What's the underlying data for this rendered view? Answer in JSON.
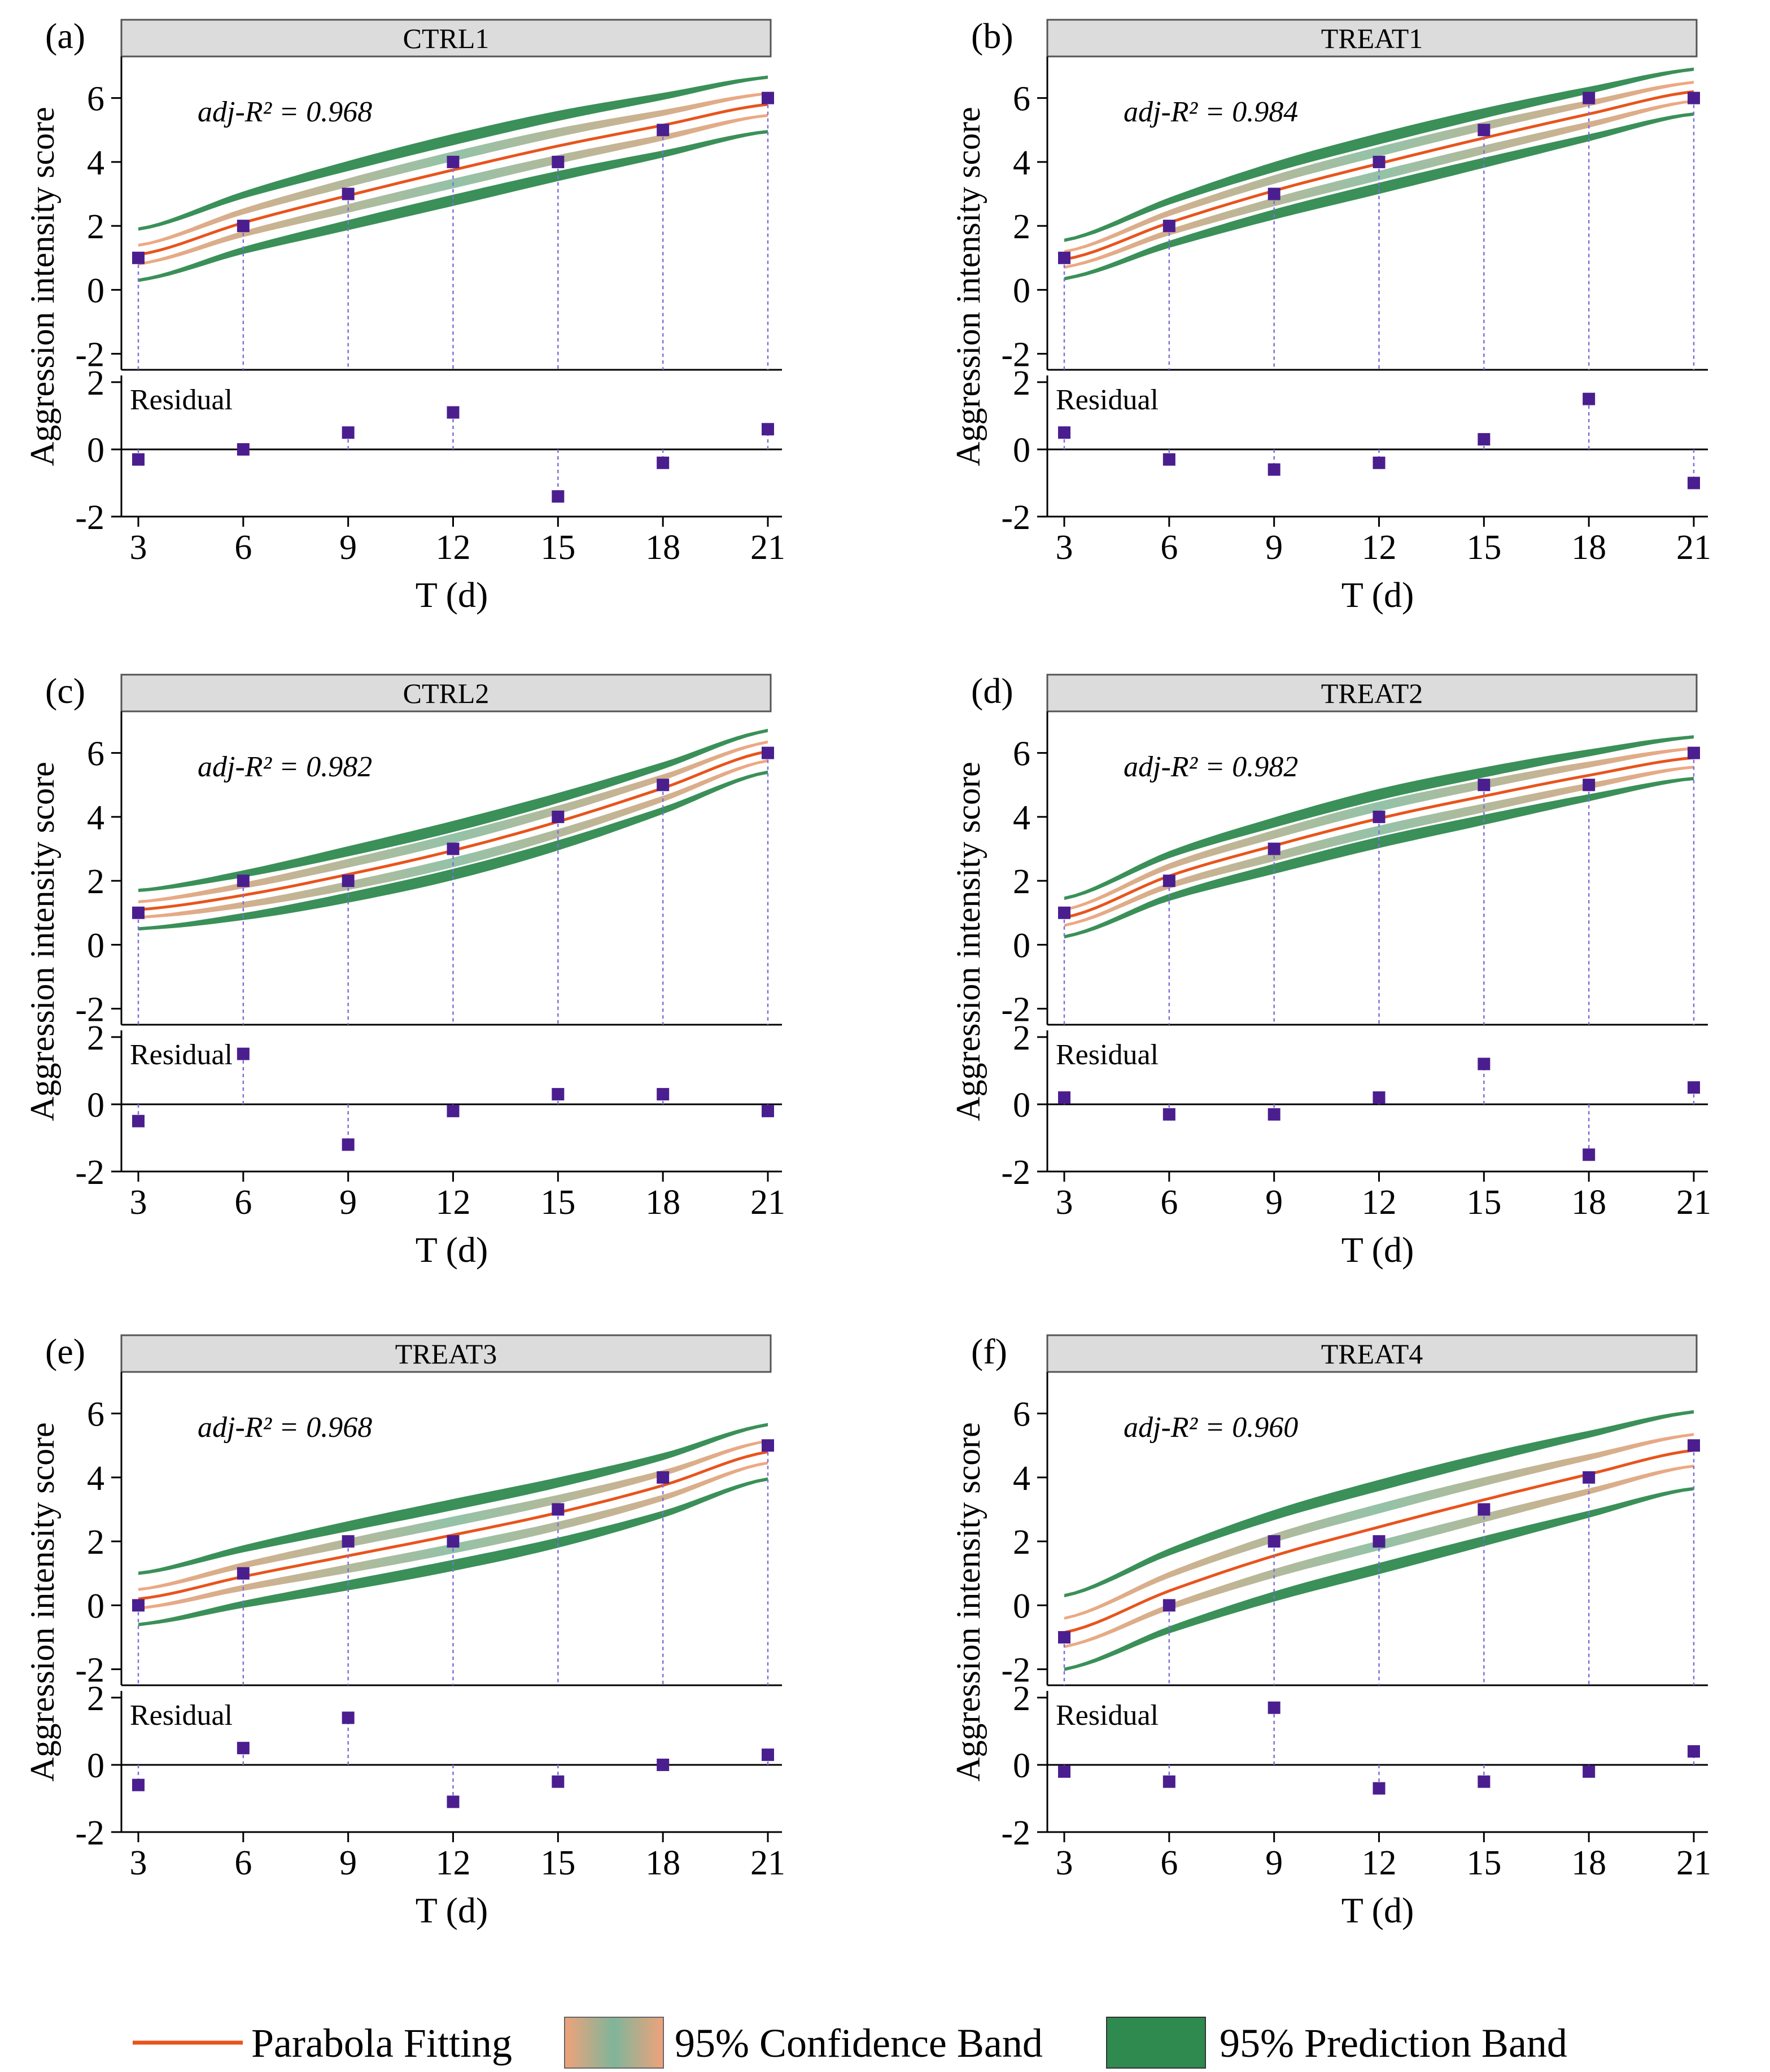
{
  "colors": {
    "fit": "#e8541c",
    "conf": "#f0a27a",
    "conf_inner": "#7fb59a",
    "pred": "#2f8a4f",
    "pred_light": "#b9dcc4",
    "point": "#4b1e8f",
    "drop": "#7e6fd8",
    "strip": "#dcdcdc"
  },
  "legend": {
    "fit_label": "Parabola Fitting",
    "conf_label": "95% Confidence Band",
    "pred_label": "95% Prediction Band"
  },
  "chart_data": [
    {
      "type": "scatter",
      "panel": "(a)",
      "title": "CTRL1",
      "xlabel": "T (d)",
      "ylabel": "Aggression intensity score",
      "annotation": "adj-R² = 0.968",
      "r2": "0.968",
      "x": [
        3,
        6,
        9,
        12,
        15,
        18,
        21
      ],
      "y": [
        1,
        2,
        3,
        4,
        4,
        5,
        6
      ],
      "fit": [
        1.1,
        2.1,
        2.95,
        3.75,
        4.5,
        5.15,
        5.8
      ],
      "residuals": [
        -0.3,
        0.0,
        0.5,
        1.1,
        -1.4,
        -0.4,
        0.6
      ],
      "conf_halfwidth": [
        0.55,
        0.6
      ],
      "pred_halfwidth": [
        1.1,
        1.15
      ],
      "xticks": [
        "3",
        "6",
        "9",
        "12",
        "15",
        "18",
        "21"
      ],
      "yticks": [
        "-2",
        "0",
        "2",
        "4",
        "6"
      ],
      "ylim": [
        -2.5,
        7.3
      ],
      "residual_label": "Residual",
      "residual_yticks": [
        "-2",
        "0",
        "2"
      ],
      "residual_ylim": [
        -2,
        2.2
      ]
    },
    {
      "type": "scatter",
      "panel": "(b)",
      "title": "TREAT1",
      "xlabel": "T (d)",
      "ylabel": "Aggression intensity score",
      "annotation": "adj-R² = 0.984",
      "r2": "0.984",
      "x": [
        3,
        6,
        9,
        12,
        15,
        18,
        21
      ],
      "y": [
        1,
        2,
        3,
        4,
        5,
        6,
        6
      ],
      "fit": [
        0.95,
        2.1,
        3.1,
        3.95,
        4.75,
        5.5,
        6.2
      ],
      "residuals": [
        0.5,
        -0.3,
        -0.6,
        -0.4,
        0.3,
        1.5,
        -1.0
      ],
      "conf_halfwidth": [
        0.5,
        0.55
      ],
      "pred_halfwidth": [
        0.9,
        1.0
      ],
      "xticks": [
        "3",
        "6",
        "9",
        "12",
        "15",
        "18",
        "21"
      ],
      "yticks": [
        "-2",
        "0",
        "2",
        "4",
        "6"
      ],
      "ylim": [
        -2.5,
        7.3
      ],
      "residual_label": "Residual",
      "residual_yticks": [
        "-2",
        "0",
        "2"
      ],
      "residual_ylim": [
        -2,
        2.2
      ]
    },
    {
      "type": "scatter",
      "panel": "(c)",
      "title": "CTRL2",
      "xlabel": "T (d)",
      "ylabel": "Aggression intensity score",
      "annotation": "adj-R² = 0.982",
      "r2": "0.982",
      "x": [
        3,
        6,
        9,
        12,
        15,
        18,
        21
      ],
      "y": [
        1,
        2,
        2,
        3,
        4,
        5,
        6
      ],
      "fit": [
        1.1,
        1.55,
        2.2,
        2.95,
        3.85,
        4.9,
        6.05
      ],
      "residuals": [
        -0.5,
        1.5,
        -1.2,
        -0.2,
        0.3,
        0.3,
        -0.2
      ],
      "conf_halfwidth": [
        0.5,
        0.55
      ],
      "pred_halfwidth": [
        0.9,
        0.95
      ],
      "xticks": [
        "3",
        "6",
        "9",
        "12",
        "15",
        "18",
        "21"
      ],
      "yticks": [
        "-2",
        "0",
        "2",
        "4",
        "6"
      ],
      "ylim": [
        -2.5,
        7.3
      ],
      "residual_label": "Residual",
      "residual_yticks": [
        "-2",
        "0",
        "2"
      ],
      "residual_ylim": [
        -2,
        2.2
      ]
    },
    {
      "type": "scatter",
      "panel": "(d)",
      "title": "TREAT2",
      "xlabel": "T (d)",
      "ylabel": "Aggression intensity score",
      "annotation": "adj-R² = 0.982",
      "r2": "0.982",
      "x": [
        3,
        6,
        9,
        12,
        15,
        18,
        21
      ],
      "y": [
        1,
        2,
        3,
        4,
        5,
        5,
        6
      ],
      "fit": [
        0.85,
        2.15,
        3.1,
        3.95,
        4.65,
        5.3,
        5.85
      ],
      "residuals": [
        0.2,
        -0.3,
        -0.3,
        0.2,
        1.2,
        -1.5,
        0.5
      ],
      "conf_halfwidth": [
        0.5,
        0.55
      ],
      "pred_halfwidth": [
        0.9,
        0.95
      ],
      "xticks": [
        "3",
        "6",
        "9",
        "12",
        "15",
        "18",
        "21"
      ],
      "yticks": [
        "-2",
        "0",
        "2",
        "4",
        "6"
      ],
      "ylim": [
        -2.5,
        7.3
      ],
      "residual_label": "Residual",
      "residual_yticks": [
        "-2",
        "0",
        "2"
      ],
      "residual_ylim": [
        -2,
        2.2
      ]
    },
    {
      "type": "scatter",
      "panel": "(e)",
      "title": "TREAT3",
      "xlabel": "T (d)",
      "ylabel": "Aggression intensity score",
      "annotation": "adj-R² = 0.968",
      "r2": "0.968",
      "x": [
        3,
        6,
        9,
        12,
        15,
        18,
        21
      ],
      "y": [
        0,
        1,
        2,
        2,
        3,
        4,
        5
      ],
      "fit": [
        0.2,
        0.9,
        1.55,
        2.2,
        2.9,
        3.75,
        4.8
      ],
      "residuals": [
        -0.6,
        0.5,
        1.4,
        -1.1,
        -0.5,
        0.0,
        0.3
      ],
      "conf_halfwidth": [
        0.55,
        0.6
      ],
      "pred_halfwidth": [
        1.1,
        1.15
      ],
      "xticks": [
        "3",
        "6",
        "9",
        "12",
        "15",
        "18",
        "21"
      ],
      "yticks": [
        "-2",
        "0",
        "2",
        "4",
        "6"
      ],
      "ylim": [
        -2.5,
        7.3
      ],
      "residual_label": "Residual",
      "residual_yticks": [
        "-2",
        "0",
        "2"
      ],
      "residual_ylim": [
        -2,
        2.2
      ]
    },
    {
      "type": "scatter",
      "panel": "(f)",
      "title": "TREAT4",
      "xlabel": "T (d)",
      "ylabel": "Aggression intensity score",
      "annotation": "adj-R² = 0.960",
      "r2": "0.960",
      "x": [
        3,
        6,
        9,
        12,
        15,
        18,
        21
      ],
      "y": [
        -1,
        0,
        2,
        2,
        3,
        4,
        5
      ],
      "fit": [
        -0.85,
        0.45,
        1.55,
        2.45,
        3.3,
        4.1,
        4.85
      ],
      "residuals": [
        -0.2,
        -0.5,
        1.7,
        -0.7,
        -0.5,
        -0.2,
        0.4
      ],
      "conf_halfwidth": [
        0.7,
        0.75
      ],
      "pred_halfwidth": [
        1.45,
        1.5
      ],
      "xticks": [
        "3",
        "6",
        "9",
        "12",
        "15",
        "18",
        "21"
      ],
      "yticks": [
        "-2",
        "0",
        "2",
        "4",
        "6"
      ],
      "ylim": [
        -2.5,
        7.3
      ],
      "residual_label": "Residual",
      "residual_yticks": [
        "-2",
        "0",
        "2"
      ],
      "residual_ylim": [
        -2,
        2.2
      ]
    }
  ]
}
